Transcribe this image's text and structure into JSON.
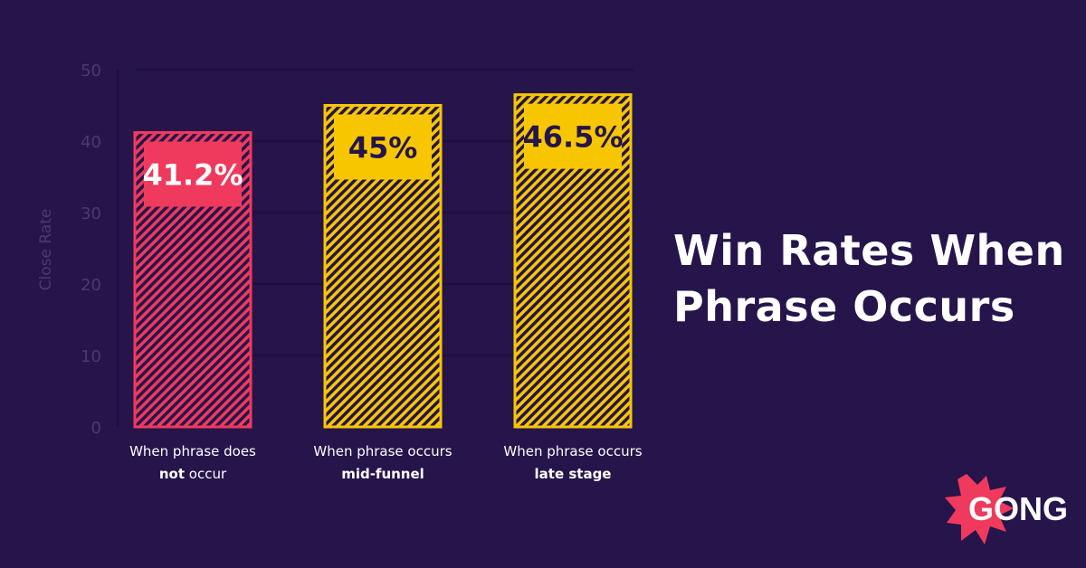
{
  "chart_data": {
    "type": "bar",
    "title": "Win Rates When Phrase Occurs",
    "title_lines": [
      "Win Rates When",
      "Phrase Occurs"
    ],
    "ylabel": "Close Rate",
    "xlabel": "",
    "ylim": [
      0,
      50
    ],
    "yticks": [
      0,
      10,
      20,
      30,
      40,
      50
    ],
    "grid": true,
    "categories": [
      {
        "line1": "When phrase does",
        "line2_bold": "not",
        "line2_rest": " occur"
      },
      {
        "line1": "When phrase occurs",
        "line2_bold": "mid-funnel",
        "line2_rest": ""
      },
      {
        "line1": "When phrase occurs",
        "line2_bold": "late stage",
        "line2_rest": ""
      }
    ],
    "values": [
      41.2,
      45,
      46.5
    ],
    "data_labels": [
      "41.2%",
      "45%",
      "46.5%"
    ],
    "bar_colors": [
      "#ef3a5d",
      "#f7c600",
      "#f7c600"
    ]
  },
  "colors": {
    "background": "#25154b",
    "axis_text": "#4a3b6e",
    "grid": "#1d1040",
    "pink": "#ef3a5d",
    "yellow": "#f7c600",
    "title": "#ffffff"
  },
  "brand": {
    "logo_text": "GONG",
    "logo_color": "#ef3a5d",
    "logo_icon": "starburst-icon"
  }
}
